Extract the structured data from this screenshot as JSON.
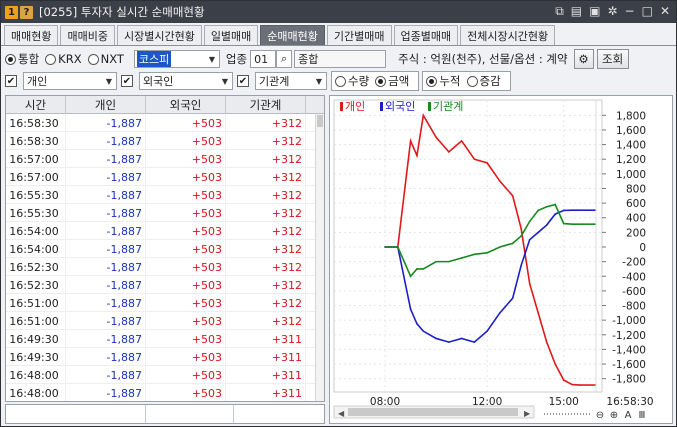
{
  "window": {
    "badge_1": "1",
    "badge_2": "?",
    "title": "[0255] 투자자 실시간 순매매현황",
    "icons": [
      "link-icon",
      "memo-icon",
      "save-icon",
      "settings-icon",
      "minimize-icon",
      "maximize-icon",
      "close-icon"
    ]
  },
  "tabs": [
    {
      "label": "매매현황",
      "active": false
    },
    {
      "label": "매매비중",
      "active": false
    },
    {
      "label": "시장별시간현황",
      "active": false
    },
    {
      "label": "일별매매",
      "active": false
    },
    {
      "label": "순매매현황",
      "active": true
    },
    {
      "label": "기간별매매",
      "active": false
    },
    {
      "label": "업종별매매",
      "active": false
    },
    {
      "label": "전체시장시간현황",
      "active": false
    }
  ],
  "filters": {
    "market_options": [
      {
        "label": "통합",
        "selected": true
      },
      {
        "label": "KRX",
        "selected": false
      },
      {
        "label": "NXT",
        "selected": false
      }
    ],
    "index_select": "코스피",
    "sector_label": "업종",
    "sector_code": "01",
    "sector_name": "종합",
    "unit_note": "주식 : 억원(천주), 선물/옵션 : 계약",
    "query_button": "조회",
    "investors": [
      {
        "label": "개인",
        "checked": true
      },
      {
        "label": "외국인",
        "checked": true
      },
      {
        "label": "기관계",
        "checked": true
      }
    ],
    "measure_options": [
      {
        "label": "수량",
        "selected": false
      },
      {
        "label": "금액",
        "selected": true
      }
    ],
    "accum_options": [
      {
        "label": "누적",
        "selected": true
      },
      {
        "label": "증감",
        "selected": false
      }
    ]
  },
  "table": {
    "headers": [
      "시간",
      "개인",
      "외국인",
      "기관계"
    ],
    "rows": [
      {
        "time": "16:58:30",
        "individual": "-1,887",
        "foreign": "+503",
        "institution": "+312"
      },
      {
        "time": "16:58:30",
        "individual": "-1,887",
        "foreign": "+503",
        "institution": "+312"
      },
      {
        "time": "16:57:00",
        "individual": "-1,887",
        "foreign": "+503",
        "institution": "+312"
      },
      {
        "time": "16:57:00",
        "individual": "-1,887",
        "foreign": "+503",
        "institution": "+312"
      },
      {
        "time": "16:55:30",
        "individual": "-1,887",
        "foreign": "+503",
        "institution": "+312"
      },
      {
        "time": "16:55:30",
        "individual": "-1,887",
        "foreign": "+503",
        "institution": "+312"
      },
      {
        "time": "16:54:00",
        "individual": "-1,887",
        "foreign": "+503",
        "institution": "+312"
      },
      {
        "time": "16:54:00",
        "individual": "-1,887",
        "foreign": "+503",
        "institution": "+312"
      },
      {
        "time": "16:52:30",
        "individual": "-1,887",
        "foreign": "+503",
        "institution": "+312"
      },
      {
        "time": "16:52:30",
        "individual": "-1,887",
        "foreign": "+503",
        "institution": "+312"
      },
      {
        "time": "16:51:00",
        "individual": "-1,887",
        "foreign": "+503",
        "institution": "+312"
      },
      {
        "time": "16:51:00",
        "individual": "-1,887",
        "foreign": "+503",
        "institution": "+312"
      },
      {
        "time": "16:49:30",
        "individual": "-1,887",
        "foreign": "+503",
        "institution": "+311"
      },
      {
        "time": "16:49:30",
        "individual": "-1,887",
        "foreign": "+503",
        "institution": "+311"
      },
      {
        "time": "16:48:00",
        "individual": "-1,887",
        "foreign": "+503",
        "institution": "+311"
      },
      {
        "time": "16:48:00",
        "individual": "-1,887",
        "foreign": "+503",
        "institution": "+311"
      }
    ]
  },
  "chart_data": {
    "type": "line",
    "legend": [
      "개인",
      "외국인",
      "기관계"
    ],
    "colors": {
      "개인": "#e0191b",
      "외국인": "#1c1fc8",
      "기관계": "#168a1e"
    },
    "x_ticks": [
      "08:00",
      "12:00",
      "15:00"
    ],
    "y_ticks": [
      1800,
      1600,
      1400,
      1200,
      1000,
      800,
      600,
      400,
      200,
      0,
      -200,
      -400,
      -600,
      -800,
      -1000,
      -1200,
      -1400,
      -1600,
      -1800
    ],
    "y_tick_labels": [
      "1,800",
      "1,600",
      "1,400",
      "1,200",
      "1,000",
      "800",
      "600",
      "400",
      "200",
      "0",
      "-200",
      "-400",
      "-600",
      "-800",
      "-1,000",
      "-1,200",
      "-1,400",
      "-1,600",
      "-1,800"
    ],
    "ylim": [
      -1900,
      1900
    ],
    "series": [
      {
        "name": "개인",
        "x": [
          "08:00",
          "08:30",
          "09:00",
          "09:15",
          "09:30",
          "10:00",
          "10:30",
          "11:00",
          "11:30",
          "12:00",
          "12:30",
          "13:00",
          "13:20",
          "13:40",
          "14:00",
          "14:20",
          "14:40",
          "15:00",
          "15:20",
          "15:40"
        ],
        "values": [
          0,
          0,
          1450,
          1250,
          1800,
          1500,
          1300,
          1450,
          1200,
          1150,
          900,
          700,
          250,
          -500,
          -900,
          -1300,
          -1600,
          -1820,
          -1880,
          -1887
        ]
      },
      {
        "name": "외국인",
        "x": [
          "08:00",
          "08:30",
          "09:00",
          "09:15",
          "09:30",
          "10:00",
          "10:30",
          "11:00",
          "11:30",
          "12:00",
          "12:30",
          "13:00",
          "13:20",
          "13:40",
          "14:00",
          "14:20",
          "14:40",
          "15:00",
          "15:20",
          "15:40"
        ],
        "values": [
          0,
          0,
          -850,
          -1050,
          -1150,
          -1250,
          -1300,
          -1250,
          -1300,
          -1150,
          -900,
          -700,
          -250,
          100,
          200,
          300,
          450,
          500,
          503,
          503
        ]
      },
      {
        "name": "기관계",
        "x": [
          "08:00",
          "08:30",
          "09:00",
          "09:15",
          "09:30",
          "10:00",
          "10:30",
          "11:00",
          "11:30",
          "12:00",
          "12:30",
          "13:00",
          "13:20",
          "13:40",
          "14:00",
          "14:20",
          "14:40",
          "15:00",
          "15:20",
          "15:40"
        ],
        "values": [
          0,
          0,
          -400,
          -300,
          -300,
          -200,
          -200,
          -150,
          -100,
          -80,
          0,
          50,
          150,
          350,
          500,
          550,
          580,
          320,
          312,
          312
        ]
      }
    ],
    "footer_time": "16:58:30",
    "zoom_controls": [
      "⊖",
      "⊕",
      "A",
      "Ⅲ"
    ]
  }
}
